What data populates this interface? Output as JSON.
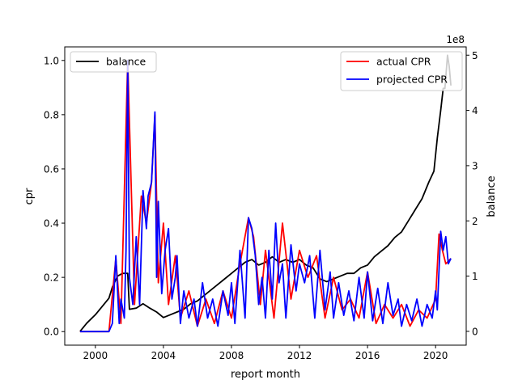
{
  "chart_data": {
    "type": "line",
    "xlabel": "report month",
    "ylabel_left": "cpr",
    "ylabel_right": "balance",
    "right_axis_offset_label": "1e8",
    "x_ticks": [
      2000,
      2004,
      2008,
      2012,
      2016,
      2020
    ],
    "y_left_ticks": [
      "0.0",
      "0.2",
      "0.4",
      "0.6",
      "0.8",
      "1.0"
    ],
    "y_right_ticks": [
      "0",
      "1",
      "2",
      "3",
      "4",
      "5"
    ],
    "xlim": [
      1998.2,
      2021.8
    ],
    "ylim_left": [
      -0.05,
      1.05
    ],
    "ylim_right": [
      -0.25,
      5.15
    ],
    "legend_left": {
      "placement": "upper left",
      "entries": [
        {
          "label": "balance",
          "color": "#000000"
        }
      ]
    },
    "legend_right": {
      "placement": "upper right",
      "entries": [
        {
          "label": "actual CPR",
          "color": "#ff0000"
        },
        {
          "label": "projected CPR",
          "color": "#0000ff"
        }
      ]
    },
    "series": [
      {
        "name": "balance",
        "axis": "right",
        "color": "#000000",
        "x": [
          1999.1,
          1999.5,
          2000.0,
          2000.4,
          2000.8,
          2001.0,
          2001.3,
          2001.6,
          2001.9,
          2002.0,
          2002.4,
          2002.8,
          2003.2,
          2003.6,
          2004.0,
          2004.4,
          2004.8,
          2005.2,
          2005.6,
          2006.0,
          2006.4,
          2006.8,
          2007.2,
          2007.6,
          2008.0,
          2008.4,
          2008.8,
          2009.2,
          2009.6,
          2010.0,
          2010.4,
          2010.8,
          2011.2,
          2011.6,
          2012.0,
          2012.4,
          2012.8,
          2013.2,
          2013.6,
          2014.0,
          2014.4,
          2014.8,
          2015.2,
          2015.6,
          2016.0,
          2016.4,
          2016.8,
          2017.2,
          2017.6,
          2018.0,
          2018.4,
          2018.8,
          2019.2,
          2019.6,
          2019.9,
          2020.1,
          2020.3,
          2020.45,
          2020.55,
          2020.7,
          2020.8,
          2020.9
        ],
        "values": [
          0,
          0.15,
          0.3,
          0.45,
          0.6,
          0.8,
          1.0,
          1.05,
          1.05,
          0.4,
          0.42,
          0.5,
          0.42,
          0.35,
          0.25,
          0.3,
          0.35,
          0.4,
          0.5,
          0.55,
          0.65,
          0.75,
          0.85,
          0.95,
          1.05,
          1.15,
          1.25,
          1.3,
          1.2,
          1.25,
          1.35,
          1.25,
          1.3,
          1.25,
          1.3,
          1.2,
          1.15,
          0.95,
          0.9,
          0.95,
          1.0,
          1.05,
          1.05,
          1.15,
          1.2,
          1.35,
          1.45,
          1.55,
          1.7,
          1.8,
          2.0,
          2.2,
          2.4,
          2.7,
          2.9,
          3.5,
          4.0,
          4.4,
          4.4,
          5.0,
          4.8,
          4.45
        ]
      },
      {
        "name": "actual CPR",
        "axis": "left",
        "color": "#ff0000",
        "x": [
          1999.1,
          2000.8,
          2001.2,
          2001.5,
          2001.9,
          2002.3,
          2002.7,
          2003.0,
          2003.3,
          2003.5,
          2003.7,
          2004.0,
          2004.3,
          2004.7,
          2005.0,
          2005.5,
          2006.0,
          2006.5,
          2007.0,
          2007.5,
          2008.0,
          2008.5,
          2009.0,
          2009.3,
          2009.7,
          2010.0,
          2010.5,
          2011.0,
          2011.5,
          2012.0,
          2012.5,
          2013.0,
          2013.5,
          2014.0,
          2014.5,
          2015.0,
          2015.5,
          2016.0,
          2016.5,
          2017.0,
          2017.5,
          2018.0,
          2018.5,
          2019.0,
          2019.5,
          2020.0,
          2020.2,
          2020.4,
          2020.6,
          2020.9
        ],
        "values": [
          0,
          0,
          0.27,
          0.03,
          1.0,
          0.1,
          0.5,
          0.4,
          0.55,
          0.8,
          0.18,
          0.4,
          0.1,
          0.28,
          0.05,
          0.15,
          0.02,
          0.12,
          0.03,
          0.15,
          0.05,
          0.25,
          0.42,
          0.35,
          0.1,
          0.3,
          0.05,
          0.4,
          0.12,
          0.3,
          0.2,
          0.28,
          0.05,
          0.2,
          0.08,
          0.12,
          0.05,
          0.22,
          0.03,
          0.1,
          0.05,
          0.1,
          0.02,
          0.08,
          0.05,
          0.12,
          0.36,
          0.3,
          0.25,
          0.27
        ]
      },
      {
        "name": "projected CPR",
        "axis": "left",
        "color": "#0000ff",
        "x": [
          1999.1,
          2000.8,
          2001.0,
          2001.2,
          2001.4,
          2001.5,
          2001.7,
          2001.8,
          2001.9,
          2002.0,
          2002.2,
          2002.4,
          2002.6,
          2002.8,
          2003.0,
          2003.1,
          2003.3,
          2003.5,
          2003.6,
          2003.7,
          2003.9,
          2004.1,
          2004.3,
          2004.5,
          2004.7,
          2004.8,
          2005.0,
          2005.2,
          2005.5,
          2005.8,
          2006.0,
          2006.3,
          2006.6,
          2006.9,
          2007.2,
          2007.5,
          2007.8,
          2008.0,
          2008.2,
          2008.5,
          2008.8,
          2009.0,
          2009.2,
          2009.4,
          2009.6,
          2009.8,
          2010.0,
          2010.2,
          2010.4,
          2010.6,
          2010.8,
          2011.0,
          2011.2,
          2011.5,
          2011.8,
          2012.0,
          2012.3,
          2012.6,
          2012.9,
          2013.2,
          2013.5,
          2013.8,
          2014.0,
          2014.3,
          2014.6,
          2014.9,
          2015.2,
          2015.5,
          2015.8,
          2016.0,
          2016.3,
          2016.6,
          2016.9,
          2017.2,
          2017.5,
          2017.8,
          2018.0,
          2018.3,
          2018.6,
          2018.9,
          2019.2,
          2019.5,
          2019.8,
          2020.0,
          2020.1,
          2020.3,
          2020.45,
          2020.6,
          2020.75,
          2020.9
        ],
        "values": [
          0,
          0,
          0.03,
          0.28,
          0.03,
          0.12,
          0.05,
          0.3,
          1.0,
          0.2,
          0.1,
          0.35,
          0.1,
          0.52,
          0.38,
          0.5,
          0.55,
          0.81,
          0.2,
          0.48,
          0.14,
          0.3,
          0.38,
          0.12,
          0.2,
          0.28,
          0.03,
          0.15,
          0.05,
          0.12,
          0.02,
          0.18,
          0.05,
          0.12,
          0.02,
          0.15,
          0.06,
          0.18,
          0.03,
          0.3,
          0.05,
          0.42,
          0.38,
          0.28,
          0.1,
          0.2,
          0.05,
          0.3,
          0.12,
          0.4,
          0.18,
          0.25,
          0.05,
          0.32,
          0.15,
          0.25,
          0.18,
          0.28,
          0.05,
          0.3,
          0.08,
          0.22,
          0.05,
          0.18,
          0.06,
          0.15,
          0.04,
          0.2,
          0.05,
          0.22,
          0.04,
          0.16,
          0.03,
          0.18,
          0.06,
          0.12,
          0.02,
          0.1,
          0.04,
          0.12,
          0.02,
          0.1,
          0.05,
          0.15,
          0.08,
          0.37,
          0.3,
          0.35,
          0.25,
          0.27
        ]
      }
    ]
  }
}
